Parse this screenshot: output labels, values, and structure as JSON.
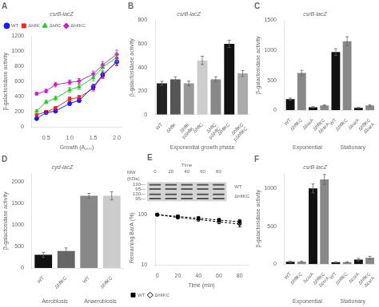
{
  "chart_data": [
    {
      "type": "line",
      "title": "A",
      "subtitle": "csrB-lacZ",
      "xlabel": "Growth (A₆₀₀)",
      "ylabel": "β-galactosidase activity",
      "x": [
        0.3,
        0.5,
        0.7,
        1.0,
        1.2,
        1.5,
        1.7,
        2.0
      ],
      "series": [
        {
          "name": "WT",
          "color": "#1a1aff",
          "marker": "circle",
          "values": [
            110,
            190,
            210,
            310,
            350,
            530,
            690,
            860
          ],
          "errors": [
            12,
            18,
            20,
            25,
            25,
            35,
            40,
            50
          ]
        },
        {
          "name": "ΔhflK",
          "color": "#ff2222",
          "marker": "square",
          "values": [
            160,
            200,
            250,
            370,
            390,
            510,
            680,
            870
          ],
          "errors": [
            12,
            18,
            20,
            28,
            28,
            35,
            40,
            50
          ]
        },
        {
          "name": "ΔhflC",
          "color": "#22cc22",
          "marker": "triangle",
          "values": [
            210,
            330,
            380,
            490,
            530,
            650,
            790,
            920
          ],
          "errors": [
            15,
            22,
            28,
            32,
            35,
            40,
            45,
            55
          ]
        },
        {
          "name": "ΔhflKC",
          "color": "#cc22cc",
          "marker": "diamond",
          "values": [
            440,
            475,
            560,
            590,
            605,
            700,
            820,
            960
          ],
          "errors": [
            20,
            25,
            30,
            30,
            35,
            40,
            45,
            55
          ]
        }
      ],
      "xlim": [
        0.2,
        2.1
      ],
      "xticks": [
        0.5,
        {
          "value": 1.0,
          "label": "1.0"
        },
        1.5,
        {
          "value": 2.0,
          "label": "2.0"
        }
      ],
      "ylim": [
        0,
        1200
      ],
      "yticks": [
        0,
        200,
        400,
        600,
        800,
        1000,
        1200
      ],
      "legend": "upper left",
      "grid": false
    },
    {
      "type": "bar",
      "title": "B",
      "subtitle": "csrB-lacZ",
      "xlabel": "Exponential growth phase",
      "ylabel": "β-galactosidase activity",
      "categories": [
        "WT",
        "ΔhflK",
        "ΔhflK\npΔhflK",
        "ΔhflC",
        "ΔhflC\npΔhflC",
        "ΔhflKC",
        "ΔhflKC\npΔhflKC"
      ],
      "values": [
        265,
        300,
        265,
        460,
        300,
        600,
        350
      ],
      "errors": [
        18,
        22,
        20,
        35,
        22,
        30,
        25
      ],
      "colors": [
        "#222222",
        "#555555",
        "#999999",
        "#cccccc",
        "#888888",
        "#111111",
        "#aaaaaa"
      ],
      "ylim": [
        0,
        800
      ],
      "yticks": [
        0,
        200,
        400,
        600,
        800
      ],
      "grid": false
    },
    {
      "type": "bar",
      "title": "C",
      "subtitle": "csrB-lacZ",
      "ylabel": "β-galactosidase activity",
      "categories": [
        "WT",
        "ΔhflKC",
        "ΔbarA",
        "ΔhflKC\nΔbarA",
        "WT",
        "ΔhflKC",
        "ΔbarA",
        "ΔhflKC\nΔbarA"
      ],
      "values": [
        185,
        620,
        50,
        80,
        970,
        1150,
        40,
        80
      ],
      "errors": [
        18,
        45,
        10,
        10,
        55,
        75,
        8,
        12
      ],
      "colors": [
        "#111111",
        "#888888",
        "#111111",
        "#888888",
        "#111111",
        "#888888",
        "#111111",
        "#888888"
      ],
      "annotations": [
        "Exponential",
        "Stationary"
      ],
      "ylim": [
        0,
        1500
      ],
      "yticks": [
        0,
        500,
        1000,
        1500
      ],
      "grid": false
    },
    {
      "type": "bar",
      "title": "D",
      "subtitle": "cyd-lacZ",
      "ylabel": "β-galactosidase activity",
      "categories": [
        "WT",
        "ΔhflKC",
        "WT",
        "ΔhflKC"
      ],
      "values": [
        310,
        400,
        1680,
        1680
      ],
      "errors": [
        60,
        70,
        55,
        95
      ],
      "colors": [
        "#111111",
        "#666666",
        "#888888",
        "#cccccc"
      ],
      "annotations": [
        "Aerobiosis",
        "Anaerobiosis"
      ],
      "ylim": [
        0,
        2200
      ],
      "yticks": [
        0,
        500,
        1000,
        1500,
        2000
      ],
      "grid": false
    },
    {
      "type": "blot",
      "title": "E",
      "xlabel": "Time",
      "categories": [
        "0",
        "20",
        "40",
        "60",
        "80"
      ],
      "series": [
        {
          "name": "WT"
        },
        {
          "name": "ΔhflKC"
        }
      ],
      "yticks": [
        {
          "value": 130,
          "label": "130—"
        },
        {
          "value": 95,
          "label": "95—"
        }
      ],
      "annotations": [
        "MW",
        "(KDa)"
      ],
      "color": "#555555"
    },
    {
      "type": "line",
      "xlabel": "Time (min)",
      "ylabel": "Remaining BarA (%)",
      "x": [
        0,
        20,
        40,
        60,
        80
      ],
      "series": [
        {
          "name": "WT",
          "color": "black",
          "marker": "square",
          "line_style": "dashed",
          "values": [
            100,
            92,
            85,
            78,
            72
          ],
          "errors": [
            3,
            5,
            5,
            6,
            8
          ]
        },
        {
          "name": "ΔhflKC",
          "color": "black",
          "marker": "diamond-open",
          "line_style": "dashed",
          "values": [
            100,
            88,
            80,
            72,
            65
          ],
          "errors": [
            3,
            5,
            5,
            6,
            8
          ]
        }
      ],
      "xlim": [
        -2,
        88
      ],
      "xticks": [
        0,
        20,
        40,
        60,
        80
      ],
      "ylim": [
        10,
        120
      ],
      "yticks": [
        10,
        100
      ],
      "log": "y",
      "legend": "lower left",
      "grid": false
    },
    {
      "type": "bar",
      "title": "F",
      "subtitle": "csrB-lacZ",
      "ylabel": "β-galactosidase activity",
      "categories": [
        "WT",
        "ΔhflKC",
        "ΔcsrA",
        "ΔhflKC\nΔcsrA",
        "WT",
        "ΔhflKC",
        "ΔcsrA",
        "ΔhflKC\nΔcsrA"
      ],
      "values": [
        30,
        30,
        1000,
        1120,
        25,
        25,
        60,
        85
      ],
      "errors": [
        8,
        10,
        60,
        65,
        6,
        8,
        15,
        18
      ],
      "colors": [
        "#111111",
        "#888888",
        "#111111",
        "#888888",
        "#111111",
        "#888888",
        "#111111",
        "#888888"
      ],
      "annotations": [
        "Exponential",
        "Stationary"
      ],
      "ylim": [
        0,
        1200
      ],
      "yticks": [
        0,
        500,
        1000
      ],
      "grid": false
    }
  ]
}
